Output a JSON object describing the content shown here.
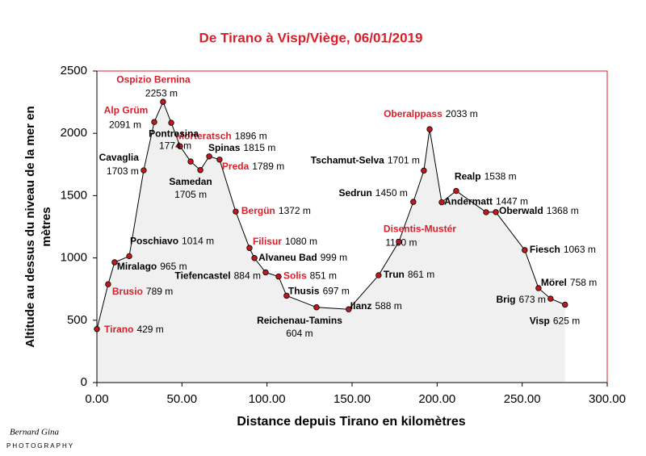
{
  "chart_data": {
    "type": "area",
    "title": "De Tirano à Visp/Viège, 06/01/2019",
    "xlabel": "Distance depuis Tirano en kilomètres",
    "ylabel": [
      "Altitude au dessus du niveau de la mer en",
      "mètres"
    ],
    "watermark": [
      "Bernard Gina",
      "PHOTOGRAPHY"
    ],
    "x": [
      0,
      6.6,
      10.4,
      19,
      27.5,
      33.7,
      38.9,
      43.7,
      48.9,
      55.1,
      60.8,
      66,
      72.1,
      81.6,
      89.7,
      92.6,
      99.2,
      106.8,
      111.5,
      129.1,
      148,
      165.6,
      177.5,
      186,
      192.2,
      195.6,
      202.7,
      211.2,
      228.8,
      234.5,
      251.5,
      259.6,
      266.7,
      275.2
    ],
    "point_labels": [
      "Tirano",
      "Brusio",
      "Miralago",
      "Poschiavo",
      "Cavaglia",
      "Alp Grüm",
      "Ospizio Bernina",
      null,
      "Morteratsch",
      "Pontresina",
      "Samedan",
      "Spinas",
      "Preda",
      "Bergün",
      "Filisur",
      "Alvaneu Bad",
      "Tiefencastel",
      "Solis",
      "Thusis",
      "Reichenau-Tamins",
      "Ilanz",
      "Trun",
      "Disentis-Mustér",
      "Sedrun",
      "Tschamut-Selva",
      "Oberalppass",
      "Andermatt",
      "Realp",
      null,
      "Oberwald",
      "Fiesch",
      "Mörel",
      "Brig",
      "Visp"
    ],
    "label_colors": [
      "#d9202a",
      "#d9202a",
      "#000000",
      "#000000",
      "#000000",
      "#d9202a",
      "#d9202a",
      null,
      "#d9202a",
      "#000000",
      "#000000",
      "#000000",
      "#d9202a",
      "#d9202a",
      "#d9202a",
      "#000000",
      "#000000",
      "#d9202a",
      "#000000",
      "#000000",
      "#000000",
      "#000000",
      "#d9202a",
      "#000000",
      "#000000",
      "#d9202a",
      "#000000",
      "#000000",
      null,
      "#000000",
      "#000000",
      "#000000",
      "#000000",
      "#000000"
    ],
    "series": [
      {
        "color": "#c0181f",
        "values": [
          429,
          789,
          965,
          1014,
          1703,
          2091,
          2253,
          2085,
          1896,
          1774,
          1705,
          1815,
          1789,
          1372,
          1080,
          999,
          884,
          851,
          697,
          604,
          588,
          861,
          1130,
          1450,
          1701,
          2033,
          1447,
          1538,
          1367,
          1368,
          1063,
          758,
          673,
          625
        ],
        "value_labels": [
          "429 m",
          "789 m",
          "965 m",
          "1014 m",
          "1703 m",
          "2091 m",
          "2253 m",
          null,
          "1896 m",
          "1774 m",
          "1705 m",
          "1815 m",
          "1789 m",
          "1372 m",
          "1080 m",
          "999 m",
          "884 m",
          "851 m",
          "697 m",
          "604 m",
          "588 m",
          "861 m",
          "1130 m",
          "1450 m",
          "1701 m",
          "2033 m",
          "1447 m",
          "1538 m",
          null,
          "1368 m",
          "1063 m",
          "758 m",
          "673 m",
          "625 m"
        ]
      }
    ],
    "xlim": [
      0,
      300
    ],
    "xticks": [
      {
        "value": 0,
        "label": "0.00"
      },
      {
        "value": 50,
        "label": "50.00"
      },
      {
        "value": 100,
        "label": "100.00"
      },
      {
        "value": 150,
        "label": "150.00"
      },
      {
        "value": 200,
        "label": "200.00"
      },
      {
        "value": 250,
        "label": "250.00"
      },
      {
        "value": 300,
        "label": "300.00"
      }
    ],
    "ylim": [
      0,
      2500
    ],
    "yticks": [
      0,
      500,
      1000,
      1500,
      2000,
      2500
    ],
    "fill_color": "#f0f0f0",
    "frame_color": "#d9202a"
  }
}
